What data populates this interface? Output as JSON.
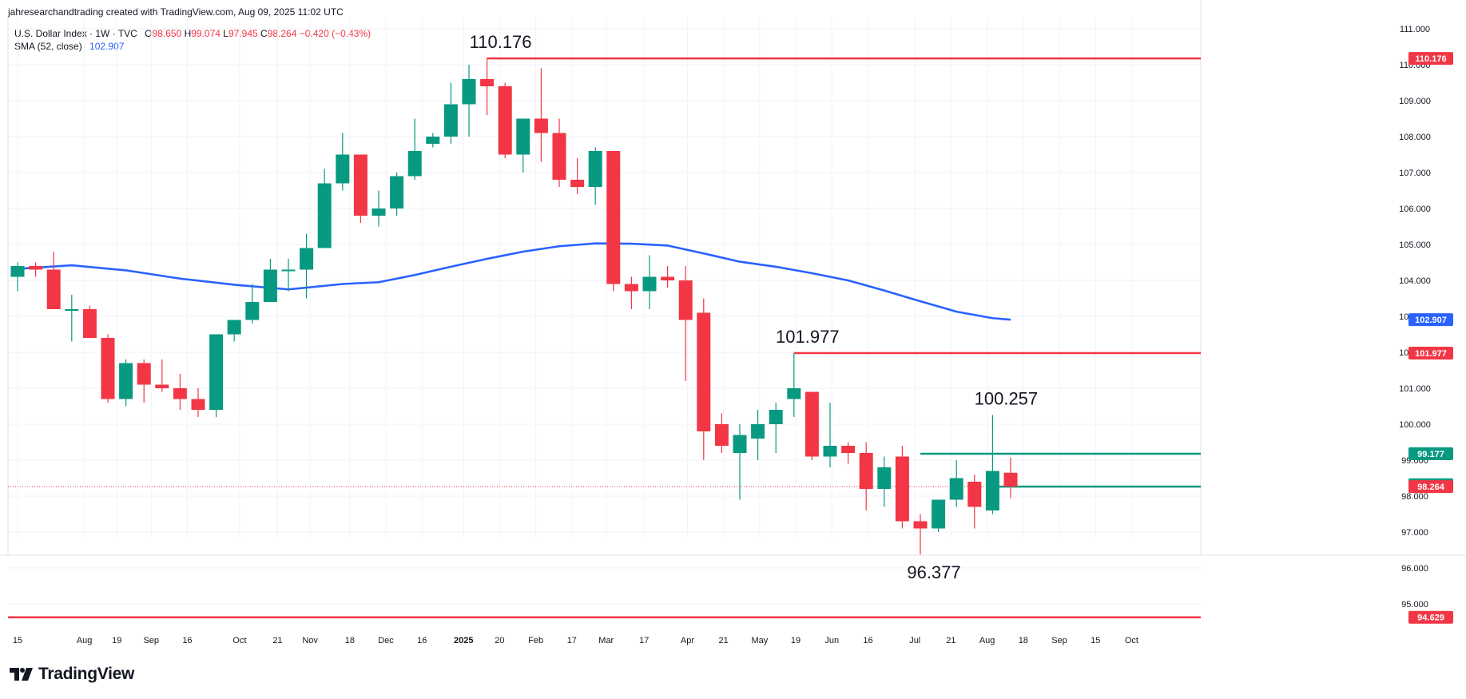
{
  "credit": "jahresearchandtrading created with TradingView.com, Aug 09, 2025 11:02 UTC",
  "legend": {
    "symbol": "U.S. Dollar Index · 1W · TVC",
    "open_label": "O",
    "open": "98.650",
    "high_label": "H",
    "high": "99.074",
    "low_label": "L",
    "low": "97.945",
    "close_label": "C",
    "close": "98.264",
    "change": "−0.420 (−0.43%)",
    "sma_label": "SMA (52, close)",
    "sma_value": "102.907"
  },
  "brand": {
    "name": "TradingView",
    "icon": "tradingview-logo-icon"
  },
  "colors": {
    "up": "#089981",
    "down": "#f23645",
    "sma": "#2962ff",
    "text": "#131722"
  },
  "chart_data": {
    "type": "candlestick",
    "title": "U.S. Dollar Index · 1W · TVC",
    "ylim": [
      94.4,
      111.2
    ],
    "y_ticks": [
      "95.000",
      "96.000",
      "97.000",
      "98.000",
      "99.000",
      "100.000",
      "101.000",
      "102.000",
      "103.000",
      "104.000",
      "105.000",
      "106.000",
      "107.000",
      "108.000",
      "109.000",
      "110.000",
      "111.000"
    ],
    "x_ticks": [
      {
        "label": "15",
        "i": 0
      },
      {
        "label": "Aug",
        "i": 3.7
      },
      {
        "label": "19",
        "i": 5.5
      },
      {
        "label": "Sep",
        "i": 7.4
      },
      {
        "label": "16",
        "i": 9.4
      },
      {
        "label": "Oct",
        "i": 12.3
      },
      {
        "label": "21",
        "i": 14.4
      },
      {
        "label": "Nov",
        "i": 16.2
      },
      {
        "label": "18",
        "i": 18.4
      },
      {
        "label": "Dec",
        "i": 20.4
      },
      {
        "label": "16",
        "i": 22.4
      },
      {
        "label": "2025",
        "i": 24.7,
        "bold": true
      },
      {
        "label": "20",
        "i": 26.7
      },
      {
        "label": "Feb",
        "i": 28.7
      },
      {
        "label": "17",
        "i": 30.7
      },
      {
        "label": "Mar",
        "i": 32.6
      },
      {
        "label": "17",
        "i": 34.7
      },
      {
        "label": "Apr",
        "i": 37.1
      },
      {
        "label": "21",
        "i": 39.1
      },
      {
        "label": "May",
        "i": 41.1
      },
      {
        "label": "19",
        "i": 43.1
      },
      {
        "label": "Jun",
        "i": 45.1
      },
      {
        "label": "16",
        "i": 47.1
      },
      {
        "label": "Jul",
        "i": 49.7
      },
      {
        "label": "21",
        "i": 51.7
      },
      {
        "label": "Aug",
        "i": 53.7
      },
      {
        "label": "18",
        "i": 55.7
      },
      {
        "label": "Sep",
        "i": 57.7
      },
      {
        "label": "15",
        "i": 59.7
      },
      {
        "label": "Oct",
        "i": 61.7
      }
    ],
    "candles": [
      {
        "o": 104.1,
        "h": 104.5,
        "l": 103.7,
        "c": 104.4
      },
      {
        "o": 104.4,
        "h": 104.5,
        "l": 104.1,
        "c": 104.3
      },
      {
        "o": 104.3,
        "h": 104.8,
        "l": 103.2,
        "c": 103.2
      },
      {
        "o": 103.2,
        "h": 103.6,
        "l": 102.3,
        "c": 103.2
      },
      {
        "o": 103.2,
        "h": 103.3,
        "l": 102.4,
        "c": 102.4
      },
      {
        "o": 102.4,
        "h": 102.5,
        "l": 100.6,
        "c": 100.7
      },
      {
        "o": 100.7,
        "h": 101.8,
        "l": 100.5,
        "c": 101.7
      },
      {
        "o": 101.7,
        "h": 101.8,
        "l": 100.6,
        "c": 101.1
      },
      {
        "o": 101.1,
        "h": 101.8,
        "l": 100.9,
        "c": 101.0
      },
      {
        "o": 101.0,
        "h": 101.4,
        "l": 100.4,
        "c": 100.7
      },
      {
        "o": 100.7,
        "h": 101.0,
        "l": 100.2,
        "c": 100.4
      },
      {
        "o": 100.4,
        "h": 102.5,
        "l": 100.2,
        "c": 102.5
      },
      {
        "o": 102.5,
        "h": 102.9,
        "l": 102.3,
        "c": 102.9
      },
      {
        "o": 102.9,
        "h": 103.9,
        "l": 102.8,
        "c": 103.4
      },
      {
        "o": 103.4,
        "h": 104.6,
        "l": 103.4,
        "c": 104.3
      },
      {
        "o": 104.3,
        "h": 104.6,
        "l": 103.7,
        "c": 104.3
      },
      {
        "o": 104.3,
        "h": 105.3,
        "l": 103.5,
        "c": 104.9
      },
      {
        "o": 104.9,
        "h": 107.1,
        "l": 104.9,
        "c": 106.7
      },
      {
        "o": 106.7,
        "h": 108.1,
        "l": 106.5,
        "c": 107.5
      },
      {
        "o": 107.5,
        "h": 107.5,
        "l": 105.6,
        "c": 105.8
      },
      {
        "o": 105.8,
        "h": 106.5,
        "l": 105.5,
        "c": 106.0
      },
      {
        "o": 106.0,
        "h": 107.0,
        "l": 105.8,
        "c": 106.9
      },
      {
        "o": 106.9,
        "h": 108.5,
        "l": 106.8,
        "c": 107.6
      },
      {
        "o": 107.8,
        "h": 108.1,
        "l": 107.7,
        "c": 108.0
      },
      {
        "o": 108.0,
        "h": 109.5,
        "l": 107.8,
        "c": 108.9
      },
      {
        "o": 108.9,
        "h": 110.0,
        "l": 108.0,
        "c": 109.6
      },
      {
        "o": 109.6,
        "h": 110.176,
        "l": 108.6,
        "c": 109.4
      },
      {
        "o": 109.4,
        "h": 109.5,
        "l": 107.4,
        "c": 107.5
      },
      {
        "o": 107.5,
        "h": 108.5,
        "l": 107.0,
        "c": 108.5
      },
      {
        "o": 108.5,
        "h": 109.9,
        "l": 107.3,
        "c": 108.1
      },
      {
        "o": 108.1,
        "h": 108.5,
        "l": 106.6,
        "c": 106.8
      },
      {
        "o": 106.8,
        "h": 107.4,
        "l": 106.4,
        "c": 106.6
      },
      {
        "o": 106.6,
        "h": 107.7,
        "l": 106.1,
        "c": 107.6
      },
      {
        "o": 107.6,
        "h": 107.6,
        "l": 103.7,
        "c": 103.9
      },
      {
        "o": 103.9,
        "h": 104.1,
        "l": 103.2,
        "c": 103.7
      },
      {
        "o": 103.7,
        "h": 104.7,
        "l": 103.2,
        "c": 104.1
      },
      {
        "o": 104.1,
        "h": 104.4,
        "l": 103.8,
        "c": 104.0
      },
      {
        "o": 104.0,
        "h": 104.4,
        "l": 101.2,
        "c": 102.9
      },
      {
        "o": 103.1,
        "h": 103.5,
        "l": 99.0,
        "c": 99.8
      },
      {
        "o": 100.0,
        "h": 100.3,
        "l": 99.2,
        "c": 99.4
      },
      {
        "o": 99.2,
        "h": 100.0,
        "l": 97.9,
        "c": 99.7
      },
      {
        "o": 99.6,
        "h": 100.4,
        "l": 99.0,
        "c": 100.0
      },
      {
        "o": 100.0,
        "h": 100.6,
        "l": 99.2,
        "c": 100.4
      },
      {
        "o": 100.7,
        "h": 101.977,
        "l": 100.2,
        "c": 101.0
      },
      {
        "o": 100.9,
        "h": 100.9,
        "l": 99.0,
        "c": 99.1
      },
      {
        "o": 99.1,
        "h": 100.6,
        "l": 98.8,
        "c": 99.4
      },
      {
        "o": 99.4,
        "h": 99.5,
        "l": 98.9,
        "c": 99.2
      },
      {
        "o": 99.2,
        "h": 99.5,
        "l": 97.6,
        "c": 98.2
      },
      {
        "o": 98.2,
        "h": 99.1,
        "l": 97.7,
        "c": 98.8
      },
      {
        "o": 99.1,
        "h": 99.4,
        "l": 97.1,
        "c": 97.3
      },
      {
        "o": 97.3,
        "h": 97.5,
        "l": 96.377,
        "c": 97.1
      },
      {
        "o": 97.1,
        "h": 97.9,
        "l": 97.0,
        "c": 97.9
      },
      {
        "o": 97.9,
        "h": 99.0,
        "l": 97.7,
        "c": 98.5
      },
      {
        "o": 98.4,
        "h": 98.6,
        "l": 97.1,
        "c": 97.7
      },
      {
        "o": 97.6,
        "h": 100.257,
        "l": 97.5,
        "c": 98.7
      },
      {
        "o": 98.65,
        "h": 99.074,
        "l": 97.945,
        "c": 98.264
      }
    ],
    "sma": {
      "name": "SMA (52, close)",
      "points": [
        [
          0,
          104.32
        ],
        [
          3,
          104.42
        ],
        [
          6,
          104.28
        ],
        [
          9,
          104.05
        ],
        [
          12,
          103.88
        ],
        [
          15,
          103.75
        ],
        [
          18,
          103.9
        ],
        [
          20,
          103.95
        ],
        [
          22,
          104.15
        ],
        [
          24,
          104.38
        ],
        [
          26,
          104.6
        ],
        [
          28,
          104.8
        ],
        [
          30,
          104.95
        ],
        [
          32,
          105.03
        ],
        [
          34,
          105.02
        ],
        [
          36,
          104.97
        ],
        [
          38,
          104.75
        ],
        [
          40,
          104.52
        ],
        [
          42,
          104.38
        ],
        [
          44,
          104.2
        ],
        [
          46,
          104.0
        ],
        [
          48,
          103.72
        ],
        [
          50,
          103.42
        ],
        [
          52,
          103.13
        ],
        [
          54,
          102.95
        ],
        [
          55,
          102.907
        ]
      ]
    },
    "hlines": [
      {
        "value": 110.176,
        "from": 26,
        "color": "#f23645",
        "label": "110.176"
      },
      {
        "value": 101.977,
        "from": 43,
        "color": "#f23645",
        "label": "101.977"
      },
      {
        "value": 99.177,
        "from": 50,
        "color": "#089981",
        "label": "99.177"
      },
      {
        "value": 98.264,
        "from": 54,
        "color": "#089981",
        "label": "98.264"
      },
      {
        "value": 94.629,
        "from": -1,
        "color": "#f23645",
        "label": "94.629"
      }
    ],
    "annotations": [
      {
        "text": "110.176",
        "i": 26,
        "value": 110.176,
        "pos": "above"
      },
      {
        "text": "101.977",
        "i": 43,
        "value": 101.977,
        "pos": "above"
      },
      {
        "text": "100.257",
        "i": 54,
        "value": 100.257,
        "pos": "above"
      },
      {
        "text": "96.377",
        "i": 50,
        "value": 96.377,
        "pos": "below"
      }
    ],
    "price_tags": [
      {
        "label": "110.176",
        "value": 110.176,
        "color": "#f23645"
      },
      {
        "label": "102.907",
        "value": 102.907,
        "color": "#2962ff"
      },
      {
        "label": "101.977",
        "value": 101.977,
        "color": "#f23645"
      },
      {
        "label": "99.177",
        "value": 99.177,
        "color": "#089981"
      },
      {
        "label": "98.317",
        "value": 98.317,
        "color": "#089981"
      },
      {
        "label": "98.264",
        "value": 98.264,
        "color": "#f23645"
      },
      {
        "label": "94.629",
        "value": 94.629,
        "color": "#f23645"
      }
    ],
    "last_price_line": 98.264
  }
}
